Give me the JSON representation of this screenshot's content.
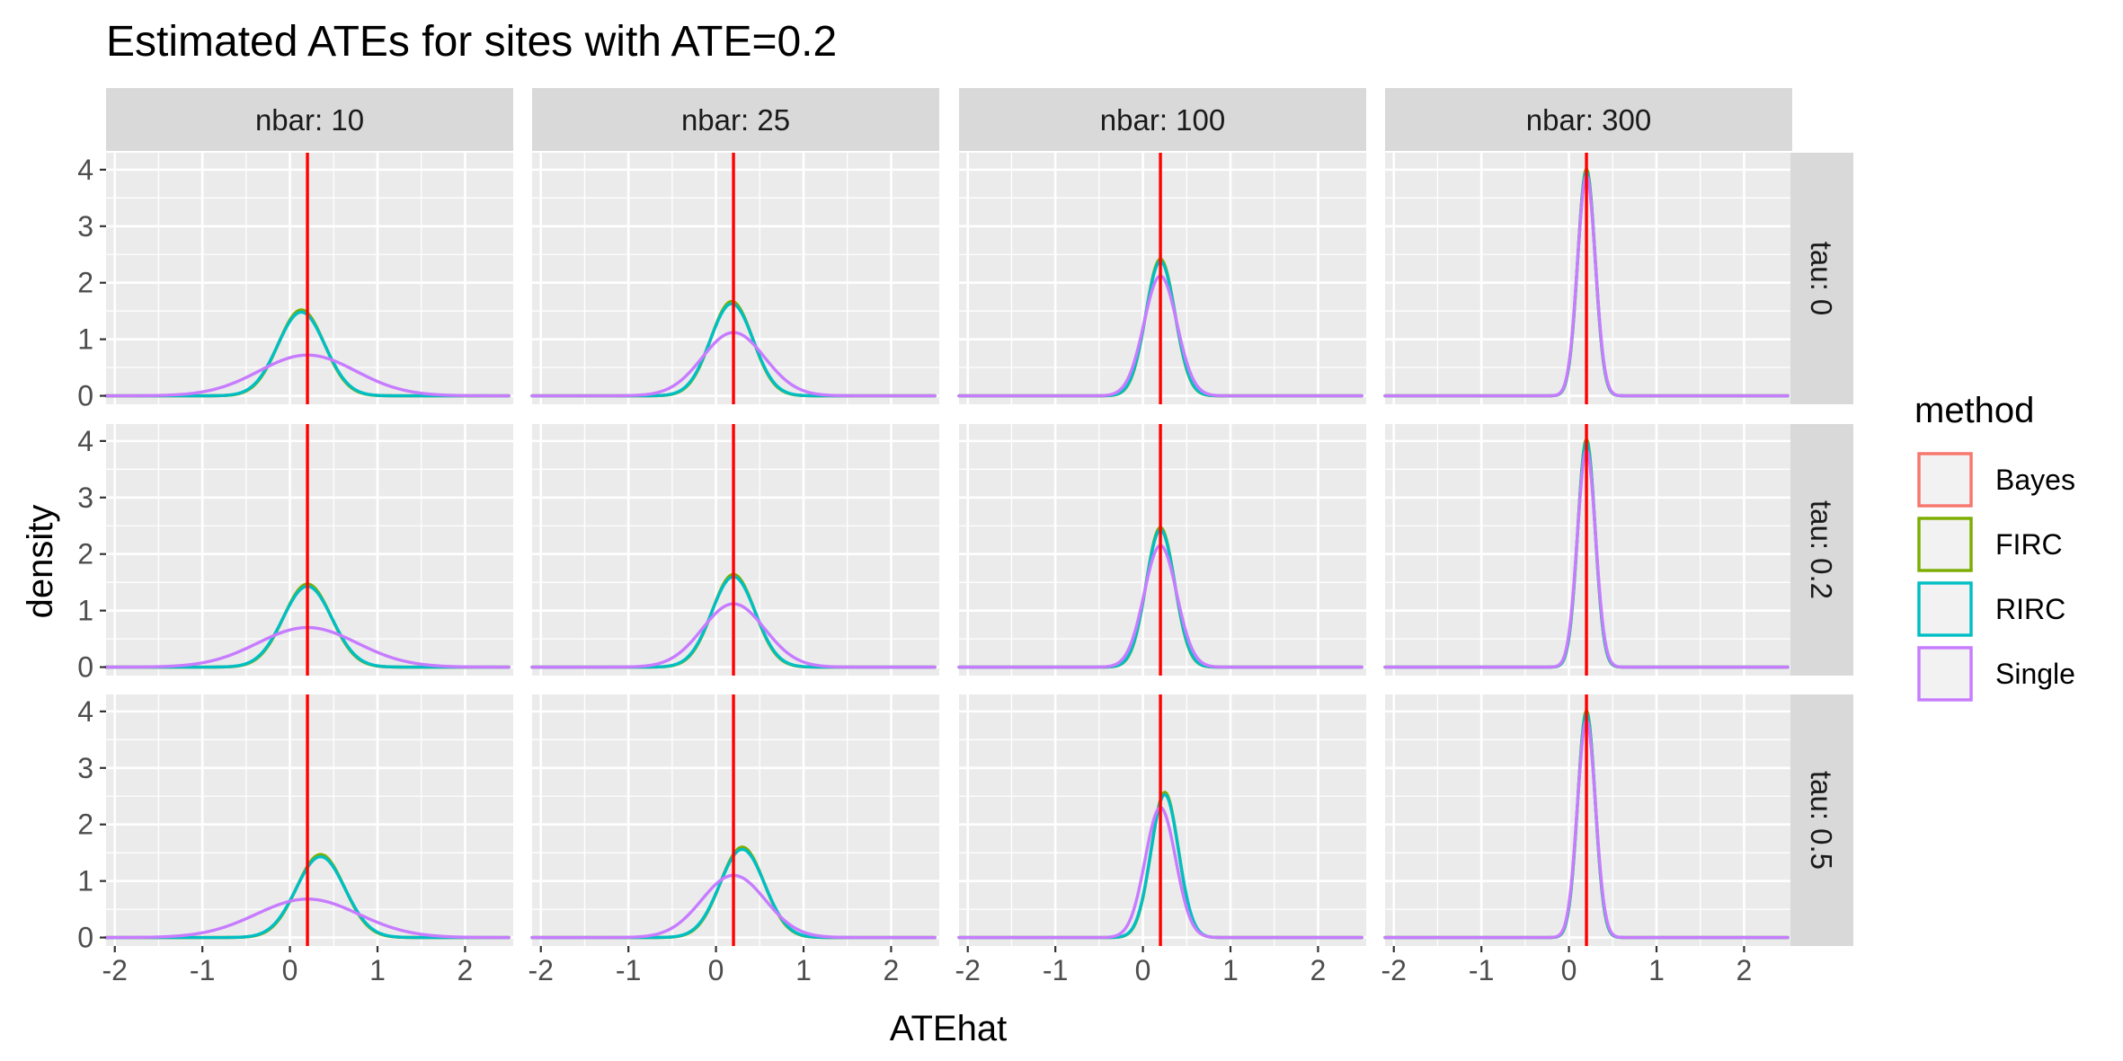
{
  "chart_data": {
    "type": "line",
    "title": "Estimated ATEs for sites with ATE=0.2",
    "xlabel": "ATEhat",
    "ylabel": "density",
    "xlim": [
      -2.1,
      2.55
    ],
    "ylim": [
      -0.15,
      4.3
    ],
    "x_ticks": [
      -2,
      -1,
      0,
      1,
      2
    ],
    "y_ticks": [
      0,
      1,
      2,
      3,
      4
    ],
    "grid": true,
    "reference_line": {
      "x": 0.2,
      "color": "#FF0000"
    },
    "facet_cols_label": [
      "nbar: 10",
      "nbar: 25",
      "nbar: 100",
      "nbar: 300"
    ],
    "facet_rows_label": [
      "tau: 0",
      "tau: 0.2",
      "tau: 0.5"
    ],
    "legend": {
      "title": "method",
      "position": "right",
      "entries": [
        {
          "name": "Bayes",
          "color": "#F8766D"
        },
        {
          "name": "FIRC",
          "color": "#7CAE00"
        },
        {
          "name": "RIRC",
          "color": "#00BFC4"
        },
        {
          "name": "Single",
          "color": "#C77CFF"
        }
      ]
    },
    "x_range": [
      -2.1,
      2.5
    ],
    "series_note": "Density curves approximated as normal shapes per panel: center and peak density read from the figure.",
    "panels": [
      {
        "row": 0,
        "col": 0,
        "series": [
          {
            "name": "Bayes",
            "center": 0.13,
            "peak": 1.5
          },
          {
            "name": "FIRC",
            "center": 0.13,
            "peak": 1.52
          },
          {
            "name": "RIRC",
            "center": 0.13,
            "peak": 1.48
          },
          {
            "name": "Single",
            "center": 0.2,
            "peak": 0.72
          }
        ]
      },
      {
        "row": 0,
        "col": 1,
        "series": [
          {
            "name": "Bayes",
            "center": 0.18,
            "peak": 1.65
          },
          {
            "name": "FIRC",
            "center": 0.18,
            "peak": 1.67
          },
          {
            "name": "RIRC",
            "center": 0.18,
            "peak": 1.63
          },
          {
            "name": "Single",
            "center": 0.2,
            "peak": 1.12
          }
        ]
      },
      {
        "row": 0,
        "col": 2,
        "series": [
          {
            "name": "Bayes",
            "center": 0.2,
            "peak": 2.4
          },
          {
            "name": "FIRC",
            "center": 0.2,
            "peak": 2.42
          },
          {
            "name": "RIRC",
            "center": 0.2,
            "peak": 2.38
          },
          {
            "name": "Single",
            "center": 0.2,
            "peak": 2.12
          }
        ]
      },
      {
        "row": 0,
        "col": 3,
        "series": [
          {
            "name": "Bayes",
            "center": 0.2,
            "peak": 4.0
          },
          {
            "name": "FIRC",
            "center": 0.2,
            "peak": 4.02
          },
          {
            "name": "RIRC",
            "center": 0.2,
            "peak": 3.98
          },
          {
            "name": "Single",
            "center": 0.2,
            "peak": 3.9
          }
        ]
      },
      {
        "row": 1,
        "col": 0,
        "series": [
          {
            "name": "Bayes",
            "center": 0.2,
            "peak": 1.45
          },
          {
            "name": "FIRC",
            "center": 0.2,
            "peak": 1.47
          },
          {
            "name": "RIRC",
            "center": 0.2,
            "peak": 1.43
          },
          {
            "name": "Single",
            "center": 0.2,
            "peak": 0.7
          }
        ]
      },
      {
        "row": 1,
        "col": 1,
        "series": [
          {
            "name": "Bayes",
            "center": 0.2,
            "peak": 1.62
          },
          {
            "name": "FIRC",
            "center": 0.2,
            "peak": 1.64
          },
          {
            "name": "RIRC",
            "center": 0.2,
            "peak": 1.6
          },
          {
            "name": "Single",
            "center": 0.2,
            "peak": 1.12
          }
        ]
      },
      {
        "row": 1,
        "col": 2,
        "series": [
          {
            "name": "Bayes",
            "center": 0.2,
            "peak": 2.45
          },
          {
            "name": "FIRC",
            "center": 0.2,
            "peak": 2.47
          },
          {
            "name": "RIRC",
            "center": 0.2,
            "peak": 2.43
          },
          {
            "name": "Single",
            "center": 0.2,
            "peak": 2.15
          }
        ]
      },
      {
        "row": 1,
        "col": 3,
        "series": [
          {
            "name": "Bayes",
            "center": 0.2,
            "peak": 4.02
          },
          {
            "name": "FIRC",
            "center": 0.2,
            "peak": 4.04
          },
          {
            "name": "RIRC",
            "center": 0.2,
            "peak": 4.0
          },
          {
            "name": "Single",
            "center": 0.2,
            "peak": 3.85
          }
        ]
      },
      {
        "row": 2,
        "col": 0,
        "series": [
          {
            "name": "Bayes",
            "center": 0.35,
            "peak": 1.45
          },
          {
            "name": "FIRC",
            "center": 0.35,
            "peak": 1.47
          },
          {
            "name": "RIRC",
            "center": 0.35,
            "peak": 1.43
          },
          {
            "name": "Single",
            "center": 0.2,
            "peak": 0.68
          }
        ]
      },
      {
        "row": 2,
        "col": 1,
        "series": [
          {
            "name": "Bayes",
            "center": 0.3,
            "peak": 1.58
          },
          {
            "name": "FIRC",
            "center": 0.3,
            "peak": 1.6
          },
          {
            "name": "RIRC",
            "center": 0.3,
            "peak": 1.56
          },
          {
            "name": "Single",
            "center": 0.2,
            "peak": 1.1
          }
        ]
      },
      {
        "row": 2,
        "col": 2,
        "series": [
          {
            "name": "Bayes",
            "center": 0.25,
            "peak": 2.55
          },
          {
            "name": "FIRC",
            "center": 0.25,
            "peak": 2.57
          },
          {
            "name": "RIRC",
            "center": 0.25,
            "peak": 2.53
          },
          {
            "name": "Single",
            "center": 0.2,
            "peak": 2.3
          }
        ]
      },
      {
        "row": 2,
        "col": 3,
        "series": [
          {
            "name": "Bayes",
            "center": 0.2,
            "peak": 4.0
          },
          {
            "name": "FIRC",
            "center": 0.2,
            "peak": 4.02
          },
          {
            "name": "RIRC",
            "center": 0.2,
            "peak": 3.98
          },
          {
            "name": "Single",
            "center": 0.2,
            "peak": 3.85
          }
        ]
      }
    ]
  }
}
